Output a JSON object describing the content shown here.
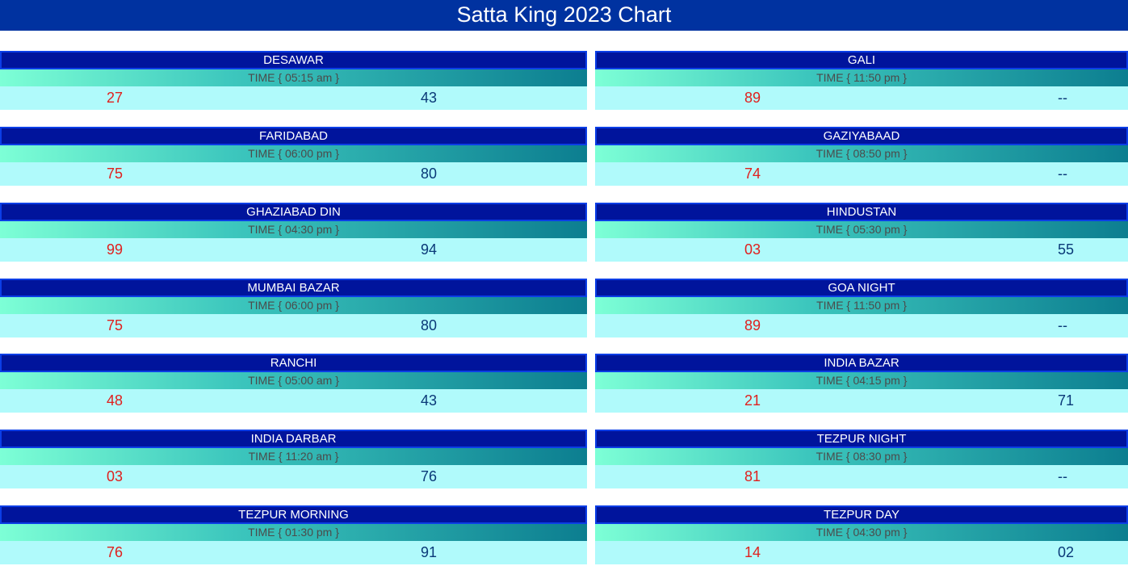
{
  "header": {
    "title": "Satta King 2023 Chart"
  },
  "cards": [
    {
      "name": "DESAWAR",
      "time": "TIME { 05:15 am }",
      "old": "27",
      "new": "43"
    },
    {
      "name": "GALI",
      "time": "TIME { 11:50 pm }",
      "old": "89",
      "new": "--"
    },
    {
      "name": "FARIDABAD",
      "time": "TIME { 06:00 pm }",
      "old": "75",
      "new": "80"
    },
    {
      "name": "GAZIYABAAD",
      "time": "TIME { 08:50 pm }",
      "old": "74",
      "new": "--"
    },
    {
      "name": "GHAZIABAD DIN",
      "time": "TIME { 04:30 pm }",
      "old": "99",
      "new": "94"
    },
    {
      "name": "HINDUSTAN",
      "time": "TIME { 05:30 pm }",
      "old": "03",
      "new": "55"
    },
    {
      "name": "MUMBAI BAZAR",
      "time": "TIME { 06:00 pm }",
      "old": "75",
      "new": "80"
    },
    {
      "name": "GOA NIGHT",
      "time": "TIME { 11:50 pm }",
      "old": "89",
      "new": "--"
    },
    {
      "name": "RANCHI",
      "time": "TIME { 05:00 am }",
      "old": "48",
      "new": "43"
    },
    {
      "name": "INDIA BAZAR",
      "time": "TIME { 04:15 pm }",
      "old": "21",
      "new": "71"
    },
    {
      "name": "INDIA DARBAR",
      "time": "TIME { 11:20 am }",
      "old": "03",
      "new": "76"
    },
    {
      "name": "TEZPUR NIGHT",
      "time": "TIME { 08:30 pm }",
      "old": "81",
      "new": "--"
    },
    {
      "name": "TEZPUR MORNING",
      "time": "TIME { 01:30 pm }",
      "old": "76",
      "new": "91"
    },
    {
      "name": "TEZPUR DAY",
      "time": "TIME { 04:30 pm }",
      "old": "14",
      "new": "02"
    }
  ],
  "colors": {
    "header_bg": "#0032a0",
    "name_bar_bg": "#00149c",
    "result_bg": "#b0fafb",
    "old_result_text": "#e0201e",
    "new_result_text": "#0a3978"
  }
}
